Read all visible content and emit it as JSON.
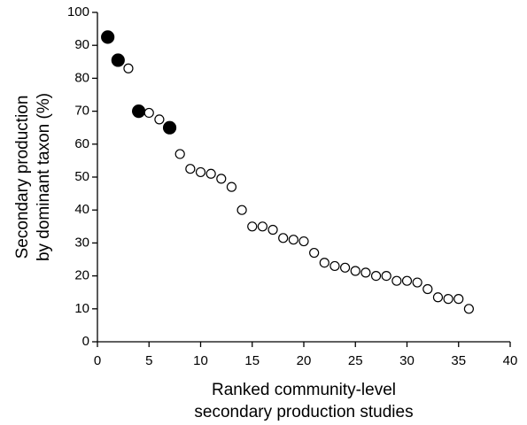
{
  "chart_data": {
    "type": "scatter",
    "xlabel": [
      "Ranked community-level",
      "secondary production studies"
    ],
    "ylabel": [
      "Secondary production",
      "by dominant taxon (%)"
    ],
    "series": [
      {
        "color": "#000000",
        "filled": true,
        "x": [
          1,
          2,
          4,
          7
        ],
        "values": [
          92.5,
          85.5,
          70,
          65
        ]
      },
      {
        "color": "#000000",
        "filled": false,
        "x": [
          3,
          5,
          6,
          8,
          9,
          10,
          11,
          12,
          13,
          14,
          15,
          16,
          17,
          18,
          19,
          20,
          21,
          22,
          23,
          24,
          25,
          26,
          27,
          28,
          29,
          30,
          31,
          32,
          33,
          34,
          35,
          36
        ],
        "values": [
          83,
          69.5,
          67.5,
          57,
          52.5,
          51.5,
          51,
          49.5,
          47,
          40,
          35,
          35,
          34,
          31.5,
          31,
          30.5,
          27,
          24,
          23,
          22.5,
          21.5,
          21,
          20,
          20,
          18.5,
          18.5,
          18,
          16,
          13.5,
          13,
          13,
          10
        ]
      }
    ],
    "xlim": [
      0,
      40
    ],
    "xticks": [
      0,
      5,
      10,
      15,
      20,
      25,
      30,
      35,
      40
    ],
    "ylim": [
      0,
      100
    ],
    "yticks": [
      0,
      10,
      20,
      30,
      40,
      50,
      60,
      70,
      80,
      90,
      100
    ],
    "grid": false
  }
}
